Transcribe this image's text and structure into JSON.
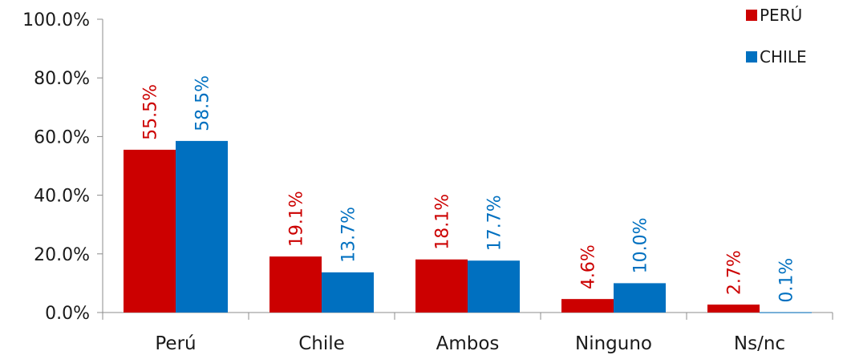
{
  "chart_data": {
    "type": "bar",
    "categories": [
      "Perú",
      "Chile",
      "Ambos",
      "Ninguno",
      "Ns/nc"
    ],
    "series": [
      {
        "name": "PERÚ",
        "color": "#cc0000",
        "values": [
          55.5,
          19.1,
          18.1,
          4.6,
          2.7
        ],
        "labels": [
          "55.5%",
          "19.1%",
          "18.1%",
          "4.6%",
          "2.7%"
        ]
      },
      {
        "name": "CHILE",
        "color": "#0070c0",
        "values": [
          58.5,
          13.7,
          17.7,
          10.0,
          0.1
        ],
        "labels": [
          "58.5%",
          "13.7%",
          "17.7%",
          "10.0%",
          "0.1%"
        ]
      }
    ],
    "y_ticks": [
      "0.0%",
      "20.0%",
      "40.0%",
      "60.0%",
      "80.0%",
      "100.0%"
    ],
    "ylim": [
      0,
      100
    ],
    "grid": false,
    "legend_position": "top-right"
  }
}
